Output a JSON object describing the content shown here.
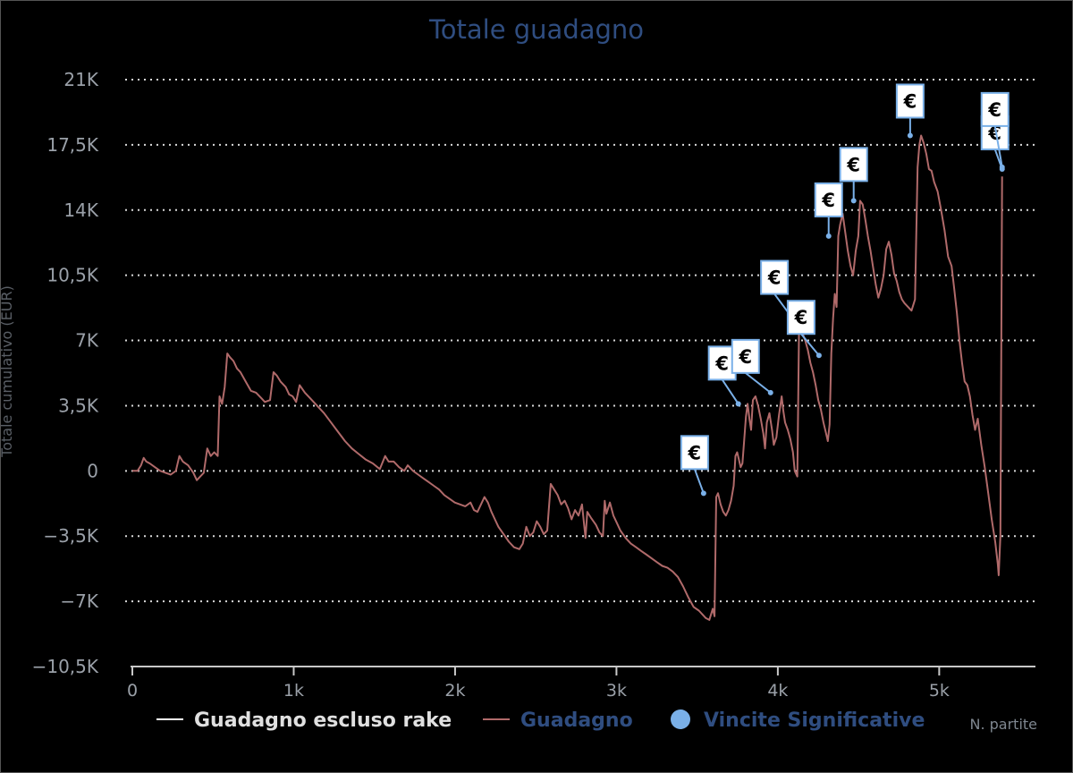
{
  "chart_data": {
    "type": "line",
    "title": "Totale guadagno",
    "ylabel": "Totale cumulativo (EUR)",
    "xlabel": "N. partite",
    "xlim": [
      0,
      5400
    ],
    "ylim": [
      -10500,
      21000
    ],
    "y_ticks": [
      {
        "value": 21000,
        "label": "21K"
      },
      {
        "value": 17500,
        "label": "17,5K"
      },
      {
        "value": 14000,
        "label": "14K"
      },
      {
        "value": 10500,
        "label": "10,5K"
      },
      {
        "value": 7000,
        "label": "7K"
      },
      {
        "value": 3500,
        "label": "3,5K"
      },
      {
        "value": 0,
        "label": "0"
      },
      {
        "value": -3500,
        "label": "-3,5K"
      },
      {
        "value": -7000,
        "label": "-7K"
      },
      {
        "value": -10500,
        "label": "-10,5K"
      }
    ],
    "x_ticks": [
      {
        "value": 0,
        "label": "0"
      },
      {
        "value": 1000,
        "label": "1k"
      },
      {
        "value": 2000,
        "label": "2k"
      },
      {
        "value": 3000,
        "label": "3k"
      },
      {
        "value": 4000,
        "label": "4k"
      },
      {
        "value": 5000,
        "label": "5k"
      }
    ],
    "grid": "horizontal-dotted",
    "legend_position": "bottom",
    "legend": [
      {
        "name": "Guadagno escluso rake",
        "color": "#ffffff",
        "marker": "line"
      },
      {
        "name": "Guadagno",
        "color": "#b06a6a",
        "marker": "line"
      },
      {
        "name": "Vincite Significative",
        "color": "#7ab0e8",
        "marker": "circle"
      }
    ],
    "series": [
      {
        "name": "Guadagno",
        "color": "#b06a6a",
        "points": [
          [
            0,
            0
          ],
          [
            30,
            0
          ],
          [
            50,
            300
          ],
          [
            65,
            700
          ],
          [
            80,
            500
          ],
          [
            100,
            400
          ],
          [
            130,
            200
          ],
          [
            160,
            0
          ],
          [
            190,
            -100
          ],
          [
            220,
            -200
          ],
          [
            250,
            0
          ],
          [
            270,
            800
          ],
          [
            290,
            500
          ],
          [
            320,
            300
          ],
          [
            350,
            -100
          ],
          [
            370,
            -500
          ],
          [
            390,
            -300
          ],
          [
            410,
            -100
          ],
          [
            430,
            1200
          ],
          [
            450,
            800
          ],
          [
            470,
            1000
          ],
          [
            490,
            800
          ],
          [
            500,
            4000
          ],
          [
            515,
            3600
          ],
          [
            530,
            4500
          ],
          [
            545,
            6300
          ],
          [
            560,
            6100
          ],
          [
            580,
            5900
          ],
          [
            600,
            5500
          ],
          [
            620,
            5300
          ],
          [
            650,
            4800
          ],
          [
            680,
            4300
          ],
          [
            710,
            4200
          ],
          [
            740,
            3900
          ],
          [
            760,
            3700
          ],
          [
            790,
            3800
          ],
          [
            810,
            5300
          ],
          [
            830,
            5100
          ],
          [
            850,
            4800
          ],
          [
            880,
            4500
          ],
          [
            900,
            4100
          ],
          [
            920,
            4000
          ],
          [
            940,
            3700
          ],
          [
            960,
            4600
          ],
          [
            990,
            4200
          ],
          [
            1020,
            3900
          ],
          [
            1060,
            3500
          ],
          [
            1100,
            3100
          ],
          [
            1140,
            2600
          ],
          [
            1180,
            2100
          ],
          [
            1220,
            1600
          ],
          [
            1260,
            1200
          ],
          [
            1300,
            900
          ],
          [
            1340,
            600
          ],
          [
            1380,
            400
          ],
          [
            1420,
            100
          ],
          [
            1450,
            800
          ],
          [
            1470,
            500
          ],
          [
            1500,
            500
          ],
          [
            1530,
            200
          ],
          [
            1560,
            0
          ],
          [
            1580,
            300
          ],
          [
            1610,
            0
          ],
          [
            1640,
            -200
          ],
          [
            1670,
            -400
          ],
          [
            1700,
            -600
          ],
          [
            1730,
            -800
          ],
          [
            1760,
            -1000
          ],
          [
            1790,
            -1300
          ],
          [
            1820,
            -1500
          ],
          [
            1850,
            -1700
          ],
          [
            1880,
            -1800
          ],
          [
            1910,
            -1900
          ],
          [
            1940,
            -1700
          ],
          [
            1960,
            -2100
          ],
          [
            1980,
            -2200
          ],
          [
            2000,
            -1800
          ],
          [
            2020,
            -1400
          ],
          [
            2040,
            -1700
          ],
          [
            2060,
            -2200
          ],
          [
            2080,
            -2600
          ],
          [
            2100,
            -3000
          ],
          [
            2130,
            -3400
          ],
          [
            2160,
            -3800
          ],
          [
            2190,
            -4100
          ],
          [
            2220,
            -4200
          ],
          [
            2240,
            -3900
          ],
          [
            2260,
            -3000
          ],
          [
            2280,
            -3500
          ],
          [
            2300,
            -3300
          ],
          [
            2320,
            -2700
          ],
          [
            2340,
            -3000
          ],
          [
            2360,
            -3400
          ],
          [
            2380,
            -3200
          ],
          [
            2400,
            -700
          ],
          [
            2420,
            -1000
          ],
          [
            2440,
            -1300
          ],
          [
            2460,
            -1800
          ],
          [
            2480,
            -1600
          ],
          [
            2500,
            -2000
          ],
          [
            2520,
            -2600
          ],
          [
            2540,
            -2100
          ],
          [
            2560,
            -2400
          ],
          [
            2580,
            -1800
          ],
          [
            2600,
            -3600
          ],
          [
            2610,
            -2200
          ],
          [
            2630,
            -2500
          ],
          [
            2660,
            -2900
          ],
          [
            2680,
            -3300
          ],
          [
            2700,
            -3500
          ],
          [
            2710,
            -1600
          ],
          [
            2720,
            -2300
          ],
          [
            2740,
            -1700
          ],
          [
            2760,
            -2400
          ],
          [
            2780,
            -2800
          ],
          [
            2800,
            -3200
          ],
          [
            2830,
            -3600
          ],
          [
            2860,
            -3900
          ],
          [
            2890,
            -4100
          ],
          [
            2920,
            -4300
          ],
          [
            2950,
            -4500
          ],
          [
            2980,
            -4700
          ],
          [
            3010,
            -4900
          ],
          [
            3040,
            -5100
          ],
          [
            3070,
            -5200
          ],
          [
            3100,
            -5400
          ],
          [
            3130,
            -5700
          ],
          [
            3160,
            -6200
          ],
          [
            3190,
            -6800
          ],
          [
            3220,
            -7300
          ],
          [
            3250,
            -7500
          ],
          [
            3270,
            -7700
          ],
          [
            3290,
            -7900
          ],
          [
            3310,
            -8000
          ],
          [
            3330,
            -7400
          ],
          [
            3340,
            -7800
          ],
          [
            3350,
            -1400
          ],
          [
            3360,
            -1200
          ],
          [
            3375,
            -1800
          ],
          [
            3390,
            -2200
          ],
          [
            3405,
            -2400
          ],
          [
            3420,
            -2100
          ],
          [
            3435,
            -1600
          ],
          [
            3450,
            -800
          ],
          [
            3460,
            800
          ],
          [
            3470,
            1000
          ],
          [
            3480,
            600
          ],
          [
            3490,
            200
          ],
          [
            3500,
            400
          ],
          [
            3510,
            1600
          ],
          [
            3520,
            2900
          ],
          [
            3530,
            3600
          ],
          [
            3540,
            2800
          ],
          [
            3550,
            2200
          ],
          [
            3560,
            3800
          ],
          [
            3575,
            4000
          ],
          [
            3590,
            3500
          ],
          [
            3605,
            2800
          ],
          [
            3620,
            2000
          ],
          [
            3630,
            1200
          ],
          [
            3640,
            2600
          ],
          [
            3655,
            3100
          ],
          [
            3670,
            2200
          ],
          [
            3680,
            1400
          ],
          [
            3695,
            1800
          ],
          [
            3710,
            3000
          ],
          [
            3725,
            4000
          ],
          [
            3735,
            3200
          ],
          [
            3745,
            2600
          ],
          [
            3760,
            2200
          ],
          [
            3775,
            1700
          ],
          [
            3790,
            1000
          ],
          [
            3800,
            0
          ],
          [
            3815,
            -300
          ],
          [
            3825,
            7600
          ],
          [
            3835,
            8000
          ],
          [
            3845,
            7400
          ],
          [
            3860,
            7000
          ],
          [
            3875,
            6500
          ],
          [
            3890,
            5800
          ],
          [
            3905,
            5300
          ],
          [
            3920,
            4600
          ],
          [
            3935,
            3800
          ],
          [
            3950,
            3300
          ],
          [
            3965,
            2600
          ],
          [
            3980,
            2000
          ],
          [
            3990,
            1600
          ],
          [
            4000,
            2500
          ],
          [
            4010,
            6300
          ],
          [
            4020,
            8200
          ],
          [
            4030,
            9500
          ],
          [
            4040,
            8800
          ],
          [
            4050,
            12600
          ],
          [
            4060,
            13200
          ],
          [
            4075,
            13800
          ],
          [
            4090,
            12800
          ],
          [
            4105,
            11800
          ],
          [
            4120,
            11000
          ],
          [
            4135,
            10500
          ],
          [
            4150,
            11800
          ],
          [
            4165,
            12600
          ],
          [
            4175,
            14500
          ],
          [
            4190,
            14300
          ],
          [
            4205,
            13500
          ],
          [
            4220,
            12600
          ],
          [
            4235,
            11800
          ],
          [
            4250,
            10900
          ],
          [
            4265,
            10000
          ],
          [
            4280,
            9300
          ],
          [
            4295,
            9800
          ],
          [
            4310,
            10500
          ],
          [
            4325,
            11900
          ],
          [
            4340,
            12300
          ],
          [
            4355,
            11600
          ],
          [
            4370,
            10600
          ],
          [
            4385,
            10200
          ],
          [
            4400,
            9600
          ],
          [
            4415,
            9200
          ],
          [
            4430,
            9000
          ],
          [
            4450,
            8800
          ],
          [
            4470,
            8600
          ],
          [
            4490,
            9200
          ],
          [
            4505,
            16300
          ],
          [
            4515,
            17500
          ],
          [
            4525,
            18000
          ],
          [
            4540,
            17600
          ],
          [
            4555,
            17000
          ],
          [
            4570,
            16200
          ],
          [
            4585,
            16100
          ],
          [
            4600,
            15500
          ],
          [
            4620,
            15000
          ],
          [
            4640,
            14000
          ],
          [
            4660,
            12900
          ],
          [
            4680,
            11500
          ],
          [
            4700,
            11000
          ],
          [
            4715,
            9800
          ],
          [
            4730,
            8500
          ],
          [
            4745,
            7000
          ],
          [
            4760,
            5800
          ],
          [
            4775,
            4800
          ],
          [
            4790,
            4600
          ],
          [
            4805,
            4000
          ],
          [
            4820,
            3000
          ],
          [
            4835,
            2200
          ],
          [
            4850,
            2800
          ],
          [
            4870,
            1400
          ],
          [
            4890,
            200
          ],
          [
            4910,
            -1200
          ],
          [
            4930,
            -2600
          ],
          [
            4950,
            -3800
          ],
          [
            4965,
            -5000
          ],
          [
            4970,
            -5600
          ],
          [
            4980,
            -3500
          ],
          [
            4990,
            15800
          ]
        ]
      }
    ],
    "highlights": {
      "name": "Vincite Significative",
      "label": "€",
      "points": [
        {
          "x": 3540,
          "y": -1200
        },
        {
          "x": 3755,
          "y": 3600
        },
        {
          "x": 3955,
          "y": 4200
        },
        {
          "x": 4090,
          "y": 8200
        },
        {
          "x": 4255,
          "y": 6200
        },
        {
          "x": 4315,
          "y": 12600
        },
        {
          "x": 4470,
          "y": 14500
        },
        {
          "x": 4820,
          "y": 18000
        },
        {
          "x": 5390,
          "y": 16200
        },
        {
          "x": 5390,
          "y": 16300
        }
      ]
    }
  }
}
